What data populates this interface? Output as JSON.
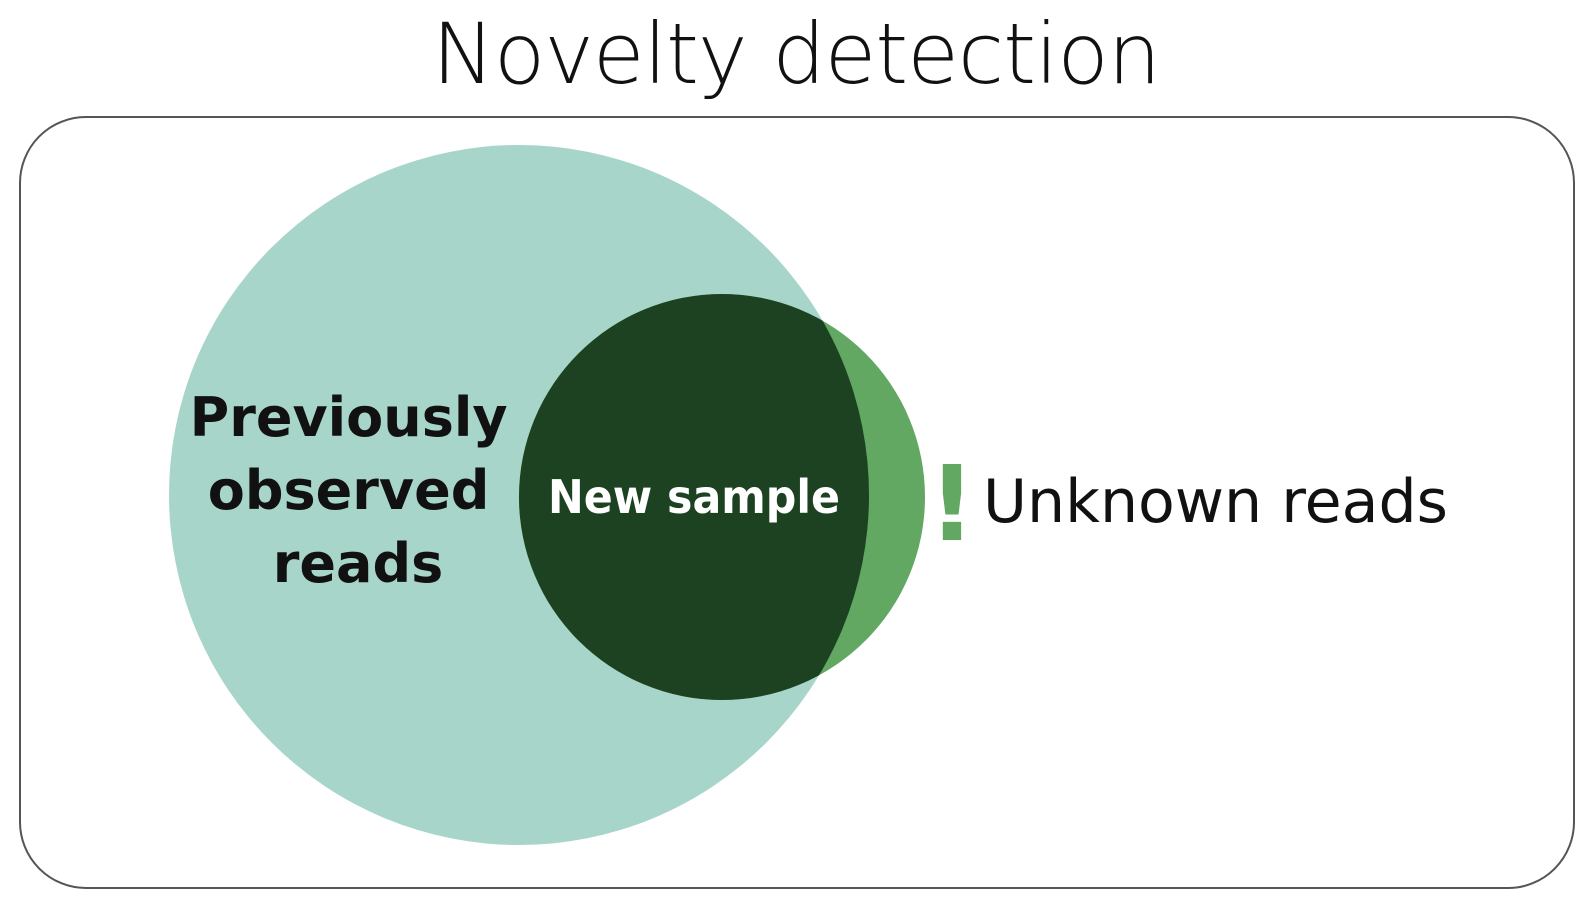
{
  "title": "Novelty detection",
  "sets": {
    "previous": {
      "lines": [
        "Previously",
        "observed",
        "reads"
      ],
      "color": "#a8d5c9"
    },
    "sample": {
      "label": "New sample",
      "color": "#1c4222"
    },
    "unknown": {
      "label": "Unknown reads",
      "color": "#62a863",
      "mark": "!"
    }
  },
  "colors": {
    "frame": "#555555",
    "text_dark": "#111111",
    "text_light": "#ffffff"
  }
}
